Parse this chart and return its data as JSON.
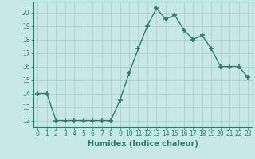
{
  "x": [
    0,
    1,
    2,
    3,
    4,
    5,
    6,
    7,
    8,
    9,
    10,
    11,
    12,
    13,
    14,
    15,
    16,
    17,
    18,
    19,
    20,
    21,
    22,
    23
  ],
  "y": [
    14,
    14,
    12,
    12,
    12,
    12,
    12,
    12,
    12,
    13.5,
    15.5,
    17.3,
    19,
    20.3,
    19.5,
    19.8,
    18.7,
    18,
    18.3,
    17.3,
    16,
    16,
    16,
    15.2
  ],
  "line_color": "#2a7d6e",
  "marker": "+",
  "marker_size": 4,
  "marker_linewidth": 1.2,
  "line_width": 1.0,
  "xlabel": "Humidex (Indice chaleur)",
  "xlabel_fontsize": 7,
  "xlim": [
    -0.5,
    23.5
  ],
  "ylim": [
    11.5,
    20.8
  ],
  "yticks": [
    12,
    13,
    14,
    15,
    16,
    17,
    18,
    19,
    20
  ],
  "xticks": [
    0,
    1,
    2,
    3,
    4,
    5,
    6,
    7,
    8,
    9,
    10,
    11,
    12,
    13,
    14,
    15,
    16,
    17,
    18,
    19,
    20,
    21,
    22,
    23
  ],
  "xtick_labels": [
    "0",
    "1",
    "2",
    "3",
    "4",
    "5",
    "6",
    "7",
    "8",
    "9",
    "10",
    "11",
    "12",
    "13",
    "14",
    "15",
    "16",
    "17",
    "18",
    "19",
    "20",
    "21",
    "22",
    "23"
  ],
  "bg_color": "#c8e8e8",
  "grid_color": "#b0d0d0",
  "tick_color": "#2a7d6e",
  "label_color": "#2a7d6e",
  "tick_fontsize": 5.5
}
